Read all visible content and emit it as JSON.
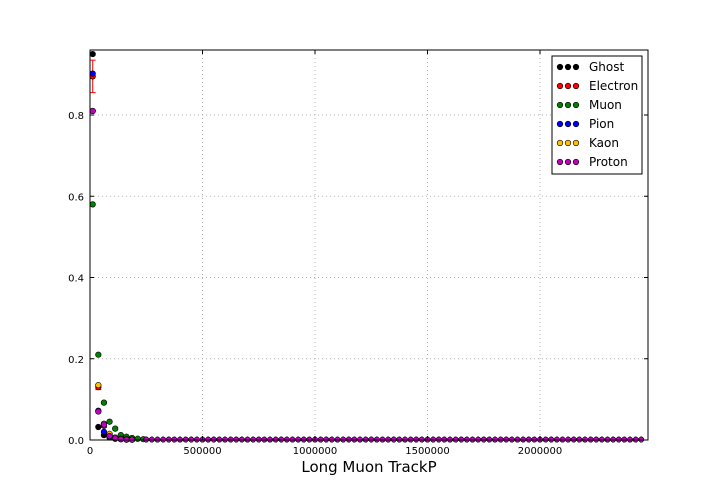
{
  "chart_data": {
    "type": "scatter",
    "title": "",
    "xlabel": "Long Muon TrackP",
    "ylabel": "",
    "xlim": [
      0,
      2480000
    ],
    "ylim": [
      0,
      0.96
    ],
    "x_ticks": [
      0,
      500000,
      1000000,
      1500000,
      2000000
    ],
    "x_tick_labels": [
      "0",
      "500000",
      "1000000",
      "1500000",
      "2000000"
    ],
    "y_ticks": [
      0.0,
      0.2,
      0.4,
      0.6,
      0.8
    ],
    "y_tick_labels": [
      "0.0",
      "0.2",
      "0.4",
      "0.6",
      "0.8"
    ],
    "grid": true,
    "legend_position": "top-right",
    "tail": {
      "x_start": 250000,
      "x_end": 2470000,
      "step": 25000,
      "y": 0.001
    },
    "series": [
      {
        "name": "Ghost",
        "color": "#000000",
        "points": [
          [
            12000,
            0.95
          ],
          [
            37000,
            0.032
          ],
          [
            62000,
            0.012
          ],
          [
            87000,
            0.006
          ],
          [
            112000,
            0.003
          ],
          [
            137000,
            0.002
          ],
          [
            162000,
            0.001
          ],
          [
            187000,
            0.001
          ]
        ]
      },
      {
        "name": "Electron",
        "color": "#ff0000",
        "points": [
          [
            12000,
            0.895
          ],
          [
            37000,
            0.13
          ],
          [
            62000,
            0.035
          ],
          [
            87000,
            0.012
          ],
          [
            112000,
            0.006
          ],
          [
            137000,
            0.003
          ],
          [
            162000,
            0.002
          ],
          [
            187000,
            0.001
          ]
        ],
        "errors": [
          0.04,
          0.006,
          0.004,
          0.002,
          0.001,
          0.001,
          0.001,
          0.001
        ]
      },
      {
        "name": "Muon",
        "color": "#007f00",
        "points": [
          [
            12000,
            0.58
          ],
          [
            37000,
            0.21
          ],
          [
            62000,
            0.092
          ],
          [
            87000,
            0.045
          ],
          [
            112000,
            0.028
          ],
          [
            137000,
            0.012
          ],
          [
            162000,
            0.008
          ],
          [
            187000,
            0.005
          ],
          [
            212000,
            0.003
          ],
          [
            237000,
            0.002
          ]
        ]
      },
      {
        "name": "Pion",
        "color": "#0000ff",
        "points": [
          [
            12000,
            0.902
          ],
          [
            37000,
            0.072
          ],
          [
            62000,
            0.02
          ],
          [
            87000,
            0.008
          ],
          [
            112000,
            0.004
          ],
          [
            137000,
            0.002
          ],
          [
            162000,
            0.001
          ],
          [
            187000,
            0.001
          ]
        ]
      },
      {
        "name": "Kaon",
        "color": "#ffbf00",
        "points": [
          [
            12000,
            0.81
          ],
          [
            37000,
            0.135
          ],
          [
            62000,
            0.04
          ],
          [
            87000,
            0.015
          ],
          [
            112000,
            0.006
          ],
          [
            137000,
            0.003
          ],
          [
            162000,
            0.002
          ],
          [
            187000,
            0.001
          ]
        ]
      },
      {
        "name": "Proton",
        "color": "#bf00bf",
        "points": [
          [
            12000,
            0.81
          ],
          [
            37000,
            0.07
          ],
          [
            62000,
            0.038
          ],
          [
            87000,
            0.01
          ],
          [
            112000,
            0.004
          ],
          [
            137000,
            0.002
          ],
          [
            162000,
            0.001
          ],
          [
            187000,
            0.001
          ]
        ]
      }
    ]
  }
}
